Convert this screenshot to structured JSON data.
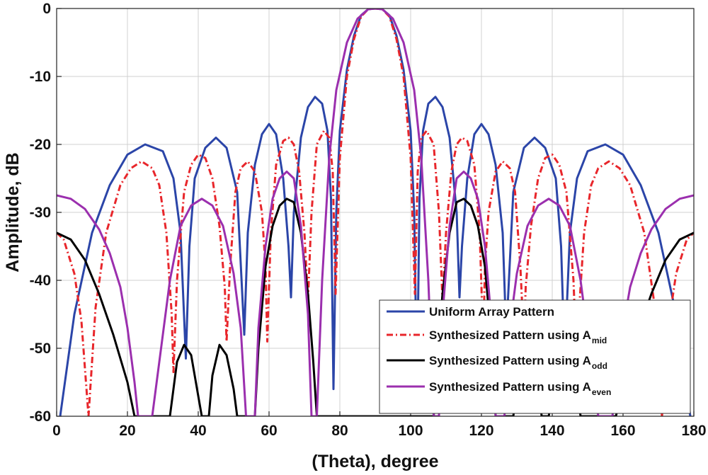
{
  "chart_data": {
    "type": "line",
    "title": "",
    "xlabel": "(Theta), degree",
    "ylabel": "Amplitude, dB",
    "xlim": [
      0,
      180
    ],
    "ylim": [
      -60,
      0
    ],
    "xticks": [
      "0",
      "20",
      "40",
      "60",
      "80",
      "100",
      "120",
      "140",
      "160",
      "180"
    ],
    "yticks": [
      "0",
      "-10",
      "-20",
      "-30",
      "-40",
      "-50",
      "-60"
    ],
    "grid": true,
    "legend_position": "bottom-right",
    "series": [
      {
        "name": "Uniform Array Pattern",
        "legend_main": "Uniform Array Pattern",
        "legend_sub": "",
        "color": "#2b45a8",
        "dash": "",
        "points": [
          [
            1,
            -60
          ],
          [
            5,
            -45
          ],
          [
            10,
            -33
          ],
          [
            15,
            -26
          ],
          [
            20,
            -21.5
          ],
          [
            25,
            -20
          ],
          [
            30,
            -21
          ],
          [
            33,
            -25
          ],
          [
            35,
            -33
          ],
          [
            36.5,
            -51.5
          ],
          [
            37.5,
            -35
          ],
          [
            39,
            -25
          ],
          [
            42,
            -20.5
          ],
          [
            45,
            -19
          ],
          [
            48,
            -20.5
          ],
          [
            51,
            -27
          ],
          [
            53,
            -48
          ],
          [
            54,
            -33
          ],
          [
            56,
            -23
          ],
          [
            58,
            -18.5
          ],
          [
            60,
            -17
          ],
          [
            62,
            -18.5
          ],
          [
            64,
            -25
          ],
          [
            65.5,
            -35
          ],
          [
            66.2,
            -42.5
          ],
          [
            67,
            -30
          ],
          [
            69,
            -19
          ],
          [
            71,
            -14.5
          ],
          [
            73,
            -13
          ],
          [
            75,
            -14
          ],
          [
            76.5,
            -18
          ],
          [
            77.5,
            -28
          ],
          [
            78.2,
            -56
          ],
          [
            79,
            -30
          ],
          [
            80,
            -18
          ],
          [
            82,
            -9
          ],
          [
            84,
            -4
          ],
          [
            86,
            -1
          ],
          [
            88,
            -0.1
          ],
          [
            90,
            0
          ],
          [
            92,
            -0.1
          ],
          [
            94,
            -1
          ],
          [
            96,
            -4
          ],
          [
            98,
            -9
          ],
          [
            100,
            -18
          ],
          [
            101,
            -30
          ],
          [
            101.8,
            -56
          ],
          [
            102.5,
            -28
          ],
          [
            103.5,
            -18
          ],
          [
            105,
            -14
          ],
          [
            107,
            -13
          ],
          [
            109,
            -14.5
          ],
          [
            111,
            -19
          ],
          [
            113,
            -30
          ],
          [
            113.8,
            -42.5
          ],
          [
            114.5,
            -35
          ],
          [
            116,
            -25
          ],
          [
            118,
            -18.5
          ],
          [
            120,
            -17
          ],
          [
            122,
            -18.5
          ],
          [
            124,
            -23
          ],
          [
            126,
            -33
          ],
          [
            127,
            -48
          ],
          [
            129,
            -27
          ],
          [
            132,
            -20.5
          ],
          [
            135,
            -19
          ],
          [
            138,
            -20.5
          ],
          [
            141,
            -25
          ],
          [
            142.5,
            -35
          ],
          [
            143.5,
            -51.5
          ],
          [
            145,
            -33
          ],
          [
            147,
            -25
          ],
          [
            150,
            -21
          ],
          [
            155,
            -20
          ],
          [
            160,
            -21.5
          ],
          [
            165,
            -26
          ],
          [
            170,
            -33
          ],
          [
            175,
            -45
          ],
          [
            179,
            -60
          ]
        ]
      },
      {
        "name": "Synthesized Pattern using A_mid",
        "legend_main": "Synthesized Pattern using A",
        "legend_sub": "mid",
        "color": "#e8262b",
        "dash": "9,4,2,4",
        "points": [
          [
            0,
            -33
          ],
          [
            2,
            -34
          ],
          [
            5,
            -39
          ],
          [
            7,
            -46
          ],
          [
            9,
            -60
          ],
          [
            11,
            -44
          ],
          [
            14,
            -33
          ],
          [
            18,
            -26
          ],
          [
            21,
            -23.5
          ],
          [
            24,
            -22.5
          ],
          [
            27,
            -23.5
          ],
          [
            29,
            -26
          ],
          [
            31,
            -33
          ],
          [
            32.5,
            -45
          ],
          [
            33,
            -53.5
          ],
          [
            34,
            -40
          ],
          [
            36,
            -27
          ],
          [
            38,
            -23
          ],
          [
            40,
            -21.5
          ],
          [
            42,
            -22
          ],
          [
            44,
            -25
          ],
          [
            46,
            -32
          ],
          [
            47.5,
            -41
          ],
          [
            48,
            -49
          ],
          [
            49,
            -38
          ],
          [
            50.5,
            -27
          ],
          [
            52,
            -23.5
          ],
          [
            54,
            -22.5
          ],
          [
            56,
            -24
          ],
          [
            58,
            -30
          ],
          [
            59,
            -38
          ],
          [
            59.5,
            -49
          ],
          [
            60.5,
            -33
          ],
          [
            62,
            -23
          ],
          [
            64,
            -19.5
          ],
          [
            65.5,
            -19
          ],
          [
            67,
            -20
          ],
          [
            68.5,
            -24
          ],
          [
            70,
            -33
          ],
          [
            71,
            -43
          ],
          [
            72,
            -30
          ],
          [
            73.5,
            -20
          ],
          [
            75.5,
            -18
          ],
          [
            77,
            -19
          ],
          [
            78,
            -24
          ],
          [
            78.8,
            -42
          ],
          [
            80,
            -22
          ],
          [
            82,
            -10
          ],
          [
            84,
            -4.5
          ],
          [
            86,
            -1.2
          ],
          [
            88,
            -0.1
          ],
          [
            90,
            0
          ],
          [
            92,
            -0.1
          ],
          [
            94,
            -1.2
          ],
          [
            96,
            -4.5
          ],
          [
            98,
            -10
          ],
          [
            100,
            -22
          ],
          [
            101.2,
            -42
          ],
          [
            102,
            -24
          ],
          [
            103,
            -19
          ],
          [
            104.5,
            -18
          ],
          [
            106.5,
            -20
          ],
          [
            108,
            -30
          ],
          [
            109,
            -43
          ],
          [
            110,
            -33
          ],
          [
            111.5,
            -24
          ],
          [
            113,
            -20
          ],
          [
            114.5,
            -19
          ],
          [
            116,
            -19.5
          ],
          [
            118,
            -23
          ],
          [
            119.5,
            -33
          ],
          [
            120.5,
            -49
          ],
          [
            121,
            -38
          ],
          [
            122,
            -30
          ],
          [
            124,
            -24
          ],
          [
            126,
            -22.5
          ],
          [
            128,
            -23.5
          ],
          [
            129.5,
            -27
          ],
          [
            131,
            -38
          ],
          [
            132,
            -49
          ],
          [
            132.5,
            -41
          ],
          [
            134,
            -32
          ],
          [
            136,
            -25
          ],
          [
            138,
            -22
          ],
          [
            140,
            -21.5
          ],
          [
            142,
            -23
          ],
          [
            144,
            -27
          ],
          [
            146,
            -40
          ],
          [
            147,
            -53.5
          ],
          [
            147.5,
            -45
          ],
          [
            149,
            -33
          ],
          [
            151,
            -26
          ],
          [
            153,
            -23.5
          ],
          [
            156,
            -22.5
          ],
          [
            159,
            -23.5
          ],
          [
            162,
            -26
          ],
          [
            166,
            -33
          ],
          [
            169,
            -44
          ],
          [
            171,
            -60
          ],
          [
            173,
            -46
          ],
          [
            175,
            -39
          ],
          [
            178,
            -34
          ],
          [
            180,
            -33
          ]
        ]
      },
      {
        "name": "Synthesized Pattern using A_odd",
        "legend_main": "Synthesized Pattern using A",
        "legend_sub": "odd",
        "color": "#000000",
        "dash": "",
        "points": [
          [
            0,
            -33
          ],
          [
            4,
            -34
          ],
          [
            8,
            -37
          ],
          [
            12,
            -42
          ],
          [
            16,
            -48
          ],
          [
            20,
            -55
          ],
          [
            22,
            -60
          ],
          [
            32,
            -60
          ],
          [
            34,
            -52
          ],
          [
            36,
            -49.5
          ],
          [
            38,
            -51
          ],
          [
            40,
            -57
          ],
          [
            41,
            -60
          ],
          [
            43,
            -60
          ],
          [
            44,
            -54
          ],
          [
            46,
            -49.5
          ],
          [
            48,
            -51
          ],
          [
            50,
            -56
          ],
          [
            51,
            -60
          ],
          [
            56,
            -60
          ],
          [
            57,
            -50
          ],
          [
            59,
            -38
          ],
          [
            61,
            -32
          ],
          [
            63,
            -29
          ],
          [
            65,
            -28
          ],
          [
            67,
            -28.5
          ],
          [
            69,
            -33
          ],
          [
            71,
            -42
          ],
          [
            72.5,
            -52
          ],
          [
            73.5,
            -60
          ],
          [
            106.5,
            -60
          ],
          [
            107.5,
            -52
          ],
          [
            109,
            -42
          ],
          [
            111,
            -33
          ],
          [
            113,
            -28.5
          ],
          [
            115,
            -28
          ],
          [
            117,
            -29
          ],
          [
            119,
            -32
          ],
          [
            121,
            -38
          ],
          [
            123,
            -50
          ],
          [
            124,
            -60
          ],
          [
            129,
            -60
          ],
          [
            130,
            -56
          ],
          [
            132,
            -51
          ],
          [
            134,
            -49.5
          ],
          [
            136,
            -54
          ],
          [
            137,
            -60
          ],
          [
            139,
            -60
          ],
          [
            140,
            -57
          ],
          [
            142,
            -51
          ],
          [
            144,
            -49.5
          ],
          [
            146,
            -52
          ],
          [
            148,
            -60
          ],
          [
            158,
            -60
          ],
          [
            160,
            -55
          ],
          [
            164,
            -48
          ],
          [
            168,
            -42
          ],
          [
            172,
            -37
          ],
          [
            176,
            -34
          ],
          [
            180,
            -33
          ]
        ]
      },
      {
        "name": "Synthesized Pattern using A_even",
        "legend_main": "Synthesized Pattern using A",
        "legend_sub": "even",
        "color": "#9b2fae",
        "dash": "",
        "points": [
          [
            0,
            -27.5
          ],
          [
            4,
            -28
          ],
          [
            8,
            -29.5
          ],
          [
            12,
            -32.5
          ],
          [
            15,
            -36
          ],
          [
            18,
            -41
          ],
          [
            20,
            -47
          ],
          [
            22,
            -55
          ],
          [
            23,
            -60
          ],
          [
            27,
            -60
          ],
          [
            29,
            -52
          ],
          [
            32,
            -40
          ],
          [
            35,
            -32
          ],
          [
            38,
            -29
          ],
          [
            41,
            -28
          ],
          [
            44,
            -29
          ],
          [
            47,
            -32
          ],
          [
            50,
            -39
          ],
          [
            52,
            -47
          ],
          [
            53.5,
            -60
          ],
          [
            56,
            -60
          ],
          [
            57,
            -47
          ],
          [
            59,
            -35
          ],
          [
            61,
            -28
          ],
          [
            63,
            -25
          ],
          [
            65,
            -24
          ],
          [
            67,
            -25
          ],
          [
            69,
            -32
          ],
          [
            71,
            -45
          ],
          [
            72,
            -60
          ],
          [
            73.5,
            -60
          ],
          [
            75,
            -40
          ],
          [
            77,
            -22
          ],
          [
            79,
            -12
          ],
          [
            82,
            -5
          ],
          [
            85,
            -1.5
          ],
          [
            88,
            -0.1
          ],
          [
            90,
            0
          ],
          [
            92,
            -0.1
          ],
          [
            95,
            -1.5
          ],
          [
            98,
            -5
          ],
          [
            101,
            -12
          ],
          [
            103,
            -22
          ],
          [
            105,
            -40
          ],
          [
            106.5,
            -60
          ],
          [
            108,
            -60
          ],
          [
            109,
            -45
          ],
          [
            111,
            -32
          ],
          [
            113,
            -25
          ],
          [
            115,
            -24
          ],
          [
            117,
            -25
          ],
          [
            119,
            -28
          ],
          [
            121,
            -35
          ],
          [
            123,
            -47
          ],
          [
            124,
            -60
          ],
          [
            126.5,
            -60
          ],
          [
            128,
            -47
          ],
          [
            130,
            -39
          ],
          [
            133,
            -32
          ],
          [
            136,
            -29
          ],
          [
            139,
            -28
          ],
          [
            142,
            -29
          ],
          [
            145,
            -32
          ],
          [
            148,
            -40
          ],
          [
            151,
            -52
          ],
          [
            153,
            -60
          ],
          [
            157,
            -60
          ],
          [
            158,
            -55
          ],
          [
            160,
            -47
          ],
          [
            162,
            -41
          ],
          [
            165,
            -36
          ],
          [
            168,
            -32.5
          ],
          [
            172,
            -29.5
          ],
          [
            176,
            -28
          ],
          [
            180,
            -27.5
          ]
        ]
      }
    ]
  }
}
